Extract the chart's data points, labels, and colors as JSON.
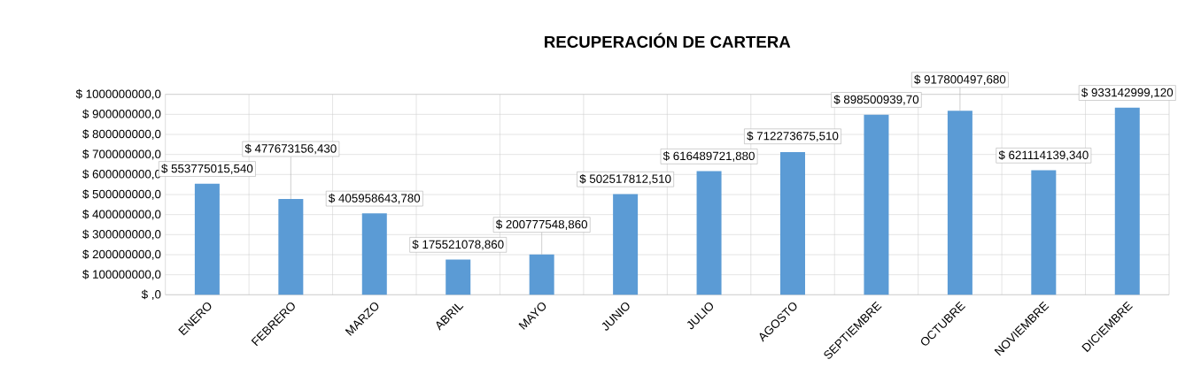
{
  "chart_data": {
    "type": "bar",
    "title": "RECUPERACIÓN DE CARTERA",
    "categories": [
      "ENERO",
      "FEBRERO",
      "MARZO",
      "ABRIL",
      "MAYO",
      "JUNIO",
      "JULIO",
      "AGOSTO",
      "SEPTIEMBRE",
      "OCTUBRE",
      "NOVIEMBRE",
      "DICIEMBRE"
    ],
    "values": [
      553775015.54,
      477673156.43,
      405958643.78,
      175521078.86,
      200777548.86,
      502517812.51,
      616489721.88,
      712273675.51,
      898500939.7,
      917800497.68,
      621114139.34,
      933142999.12
    ],
    "value_labels": [
      "$ 553775015,540",
      "$ 477673156,430",
      "$ 405958643,780",
      "$ 175521078,860",
      "$ 200777548,860",
      "$ 502517812,510",
      "$ 616489721,880",
      "$ 712273675,510",
      "$ 898500939,70",
      "$ 917800497,680",
      "$ 621114139,340",
      "$ 933142999,120"
    ],
    "color": "#5b9bd5",
    "ylim": [
      0,
      1000000000
    ],
    "yticks": [
      {
        "value": 0,
        "label": "$ ,0"
      },
      {
        "value": 100000000,
        "label": "$ 100000000,0"
      },
      {
        "value": 200000000,
        "label": "$ 200000000,0"
      },
      {
        "value": 300000000,
        "label": "$ 300000000,0"
      },
      {
        "value": 400000000,
        "label": "$ 400000000,0"
      },
      {
        "value": 500000000,
        "label": "$ 500000000,0"
      },
      {
        "value": 600000000,
        "label": "$ 600000000,0"
      },
      {
        "value": 700000000,
        "label": "$ 700000000,0"
      },
      {
        "value": 800000000,
        "label": "$ 800000000,0"
      },
      {
        "value": 900000000,
        "label": "$ 900000000,0"
      },
      {
        "value": 1000000000,
        "label": "$ 1000000000,0"
      }
    ],
    "grid": true
  }
}
